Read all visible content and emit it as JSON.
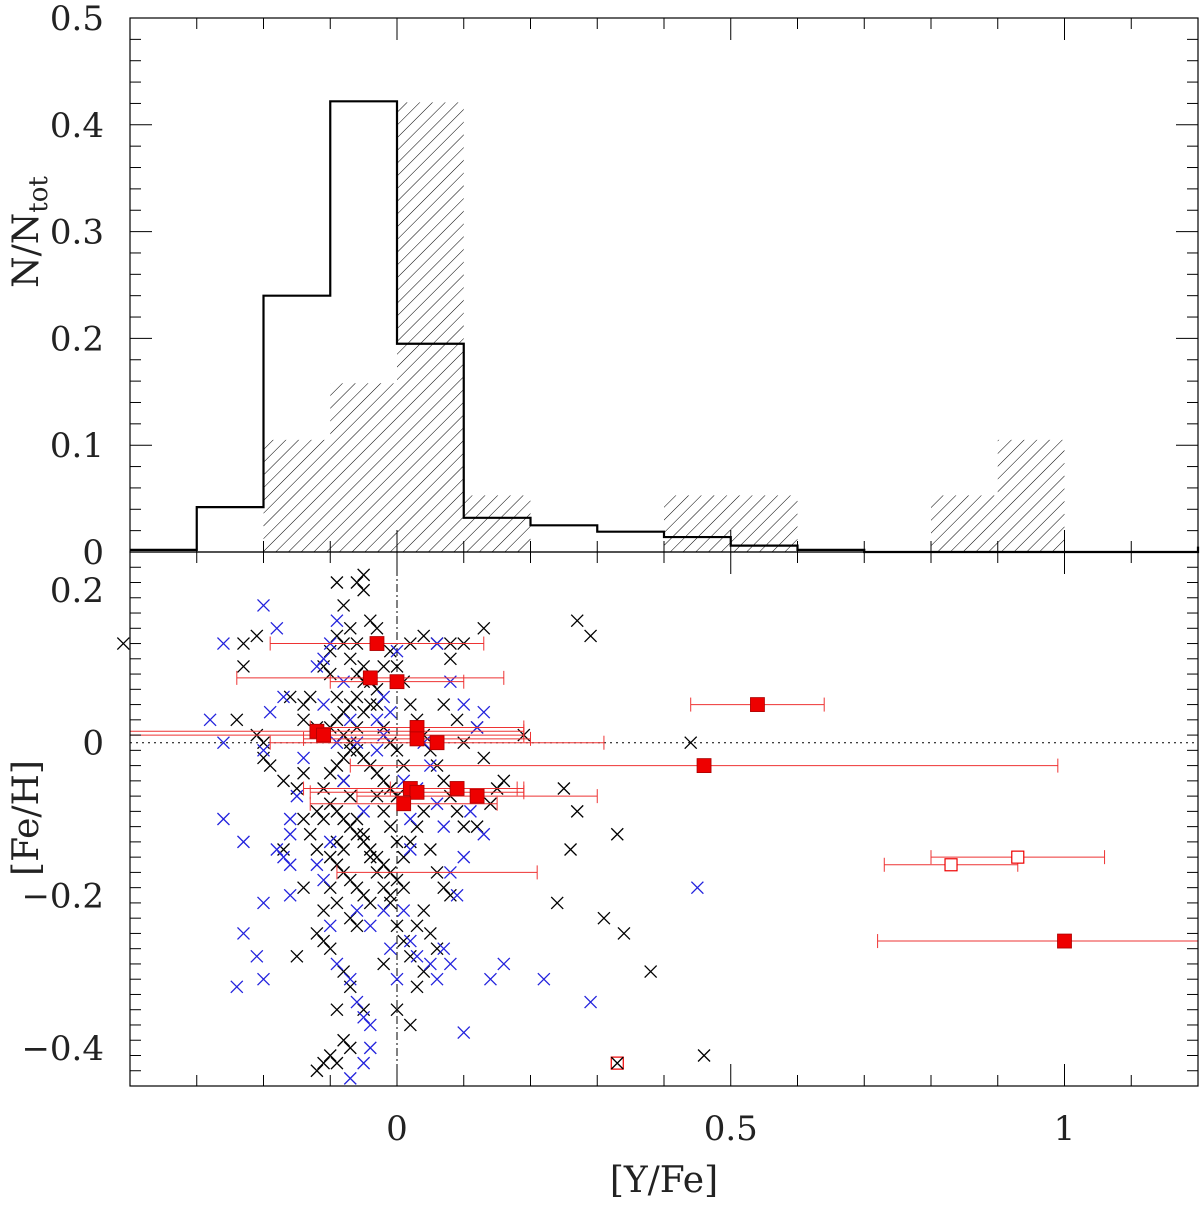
{
  "colors": {
    "field_stars": "#000000",
    "thin_disk": "#2222dd",
    "targets": "#ee0000",
    "error_bars": "#ee3333"
  },
  "chart_data": [
    {
      "type": "histogram",
      "ylabel": "N/N",
      "ylabel_subscript": "tot",
      "xlim": [
        -0.4,
        1.2
      ],
      "ylim": [
        0,
        0.5
      ],
      "yticks": [
        {
          "v": 0,
          "label": "0"
        },
        {
          "v": 0.1,
          "label": "0.1"
        },
        {
          "v": 0.2,
          "label": "0.2"
        },
        {
          "v": 0.3,
          "label": "0.3"
        },
        {
          "v": 0.4,
          "label": "0.4"
        },
        {
          "v": 0.5,
          "label": "0.5"
        }
      ],
      "bin_edges": [
        -0.4,
        -0.3,
        -0.2,
        -0.1,
        0.0,
        0.1,
        0.2,
        0.3,
        0.4,
        0.5,
        0.6,
        0.7,
        0.8,
        0.9,
        1.0,
        1.1,
        1.2
      ],
      "series": [
        {
          "style": "step",
          "values": [
            0.002,
            0.042,
            0.24,
            0.422,
            0.195,
            0.032,
            0.025,
            0.019,
            0.014,
            0.006,
            0.002,
            0.0,
            0.0,
            0.0,
            0.0,
            0.0
          ]
        },
        {
          "style": "hatched",
          "values": [
            0.0,
            0.0,
            0.105,
            0.158,
            0.421,
            0.053,
            0.0,
            0.0,
            0.053,
            0.053,
            0.0,
            0.0,
            0.053,
            0.105,
            0.0,
            0.0
          ]
        }
      ]
    },
    {
      "type": "scatter",
      "xlabel": "[Y/Fe]",
      "ylabel": "[Fe/H]",
      "xlim": [
        -0.4,
        1.2
      ],
      "ylim": [
        -0.45,
        0.25
      ],
      "xticks": [
        {
          "v": 0,
          "label": "0"
        },
        {
          "v": 0.5,
          "label": "0.5"
        },
        {
          "v": 1,
          "label": "1"
        }
      ],
      "yticks": [
        {
          "v": 0.2,
          "label": "0.2"
        },
        {
          "v": 0,
          "label": "0"
        },
        {
          "v": -0.2,
          "label": "−0.2"
        },
        {
          "v": -0.4,
          "label": "−0.4"
        }
      ],
      "reference_lines": {
        "x": 0,
        "y": 0
      },
      "field_black": [
        [
          -0.41,
          0.13
        ],
        [
          -0.23,
          0.13
        ],
        [
          -0.23,
          0.1
        ],
        [
          -0.21,
          0.01
        ],
        [
          -0.2,
          0.0
        ],
        [
          -0.2,
          -0.02
        ],
        [
          -0.19,
          -0.03
        ],
        [
          -0.15,
          -0.06
        ],
        [
          -0.14,
          -0.04
        ],
        [
          -0.17,
          -0.05
        ],
        [
          -0.21,
          0.14
        ],
        [
          -0.24,
          0.03
        ],
        [
          -0.16,
          0.06
        ],
        [
          -0.14,
          0.05
        ],
        [
          -0.14,
          0.03
        ],
        [
          -0.12,
          0.02
        ],
        [
          -0.11,
          0.01
        ],
        [
          -0.11,
          0.1
        ],
        [
          -0.1,
          0.12
        ],
        [
          -0.09,
          0.14
        ],
        [
          -0.08,
          0.13
        ],
        [
          -0.07,
          0.11
        ],
        [
          -0.06,
          0.09
        ],
        [
          -0.05,
          0.08
        ],
        [
          -0.06,
          0.06
        ],
        [
          -0.07,
          0.05
        ],
        [
          -0.08,
          0.04
        ],
        [
          -0.09,
          0.03
        ],
        [
          -0.1,
          0.02
        ],
        [
          -0.08,
          0.01
        ],
        [
          -0.07,
          0.0
        ],
        [
          -0.06,
          -0.01
        ],
        [
          -0.05,
          -0.02
        ],
        [
          -0.04,
          -0.03
        ],
        [
          -0.03,
          -0.04
        ],
        [
          -0.02,
          -0.05
        ],
        [
          -0.01,
          -0.06
        ],
        [
          0.0,
          -0.07
        ],
        [
          -0.1,
          -0.08
        ],
        [
          -0.09,
          -0.09
        ],
        [
          -0.08,
          -0.1
        ],
        [
          -0.07,
          -0.11
        ],
        [
          -0.06,
          -0.12
        ],
        [
          -0.05,
          -0.13
        ],
        [
          -0.04,
          -0.14
        ],
        [
          -0.03,
          -0.15
        ],
        [
          -0.02,
          -0.16
        ],
        [
          -0.01,
          -0.17
        ],
        [
          0.0,
          -0.18
        ],
        [
          0.01,
          -0.19
        ],
        [
          -0.1,
          -0.15
        ],
        [
          -0.09,
          -0.16
        ],
        [
          -0.08,
          -0.17
        ],
        [
          -0.07,
          -0.18
        ],
        [
          -0.06,
          -0.19
        ],
        [
          -0.05,
          -0.2
        ],
        [
          -0.04,
          -0.21
        ],
        [
          -0.11,
          -0.22
        ],
        [
          -0.12,
          -0.25
        ],
        [
          -0.11,
          -0.26
        ],
        [
          -0.1,
          -0.27
        ],
        [
          -0.08,
          -0.3
        ],
        [
          -0.07,
          -0.32
        ],
        [
          -0.05,
          -0.35
        ],
        [
          -0.09,
          -0.35
        ],
        [
          -0.08,
          -0.39
        ],
        [
          -0.07,
          -0.4
        ],
        [
          -0.09,
          -0.42
        ],
        [
          -0.11,
          -0.42
        ],
        [
          -0.12,
          -0.43
        ],
        [
          -0.1,
          -0.41
        ],
        [
          -0.13,
          0.06
        ],
        [
          -0.11,
          -0.1
        ],
        [
          -0.11,
          -0.06
        ],
        [
          -0.1,
          -0.04
        ],
        [
          -0.09,
          -0.03
        ],
        [
          -0.08,
          -0.02
        ],
        [
          -0.07,
          -0.01
        ],
        [
          -0.06,
          0.02
        ],
        [
          -0.05,
          0.04
        ],
        [
          -0.04,
          0.05
        ],
        [
          -0.03,
          0.07
        ],
        [
          -0.02,
          0.1
        ],
        [
          -0.01,
          0.12
        ],
        [
          0.0,
          0.1
        ],
        [
          0.01,
          0.08
        ],
        [
          0.02,
          0.05
        ],
        [
          0.03,
          0.03
        ],
        [
          0.04,
          0.01
        ],
        [
          0.05,
          -0.01
        ],
        [
          0.06,
          -0.03
        ],
        [
          0.07,
          -0.05
        ],
        [
          0.08,
          -0.07
        ],
        [
          0.09,
          -0.09
        ],
        [
          0.1,
          -0.11
        ],
        [
          0.05,
          -0.14
        ],
        [
          0.06,
          -0.17
        ],
        [
          0.07,
          -0.19
        ],
        [
          0.08,
          -0.2
        ],
        [
          0.04,
          -0.22
        ],
        [
          0.03,
          -0.24
        ],
        [
          0.05,
          -0.25
        ],
        [
          0.06,
          -0.27
        ],
        [
          0.04,
          -0.3
        ],
        [
          0.03,
          -0.32
        ],
        [
          0.02,
          -0.28
        ],
        [
          0.01,
          -0.26
        ],
        [
          0.0,
          -0.24
        ],
        [
          -0.01,
          -0.21
        ],
        [
          -0.02,
          -0.29
        ],
        [
          0.02,
          -0.37
        ],
        [
          0.0,
          -0.35
        ],
        [
          -0.05,
          0.22
        ],
        [
          -0.05,
          0.2
        ],
        [
          -0.06,
          0.21
        ],
        [
          -0.09,
          0.21
        ],
        [
          -0.08,
          0.18
        ],
        [
          -0.04,
          0.16
        ],
        [
          -0.03,
          0.15
        ],
        [
          0.02,
          0.13
        ],
        [
          0.04,
          0.14
        ],
        [
          0.06,
          0.13
        ],
        [
          0.08,
          0.13
        ],
        [
          0.1,
          0.13
        ],
        [
          0.13,
          0.15
        ],
        [
          0.12,
          0.02
        ],
        [
          0.13,
          -0.02
        ],
        [
          0.15,
          -0.06
        ],
        [
          0.16,
          -0.05
        ],
        [
          0.14,
          -0.08
        ],
        [
          0.12,
          -0.11
        ],
        [
          0.07,
          0.05
        ],
        [
          0.08,
          0.11
        ],
        [
          0.09,
          0.03
        ],
        [
          0.1,
          0.0
        ],
        [
          0.27,
          0.16
        ],
        [
          0.29,
          0.14
        ],
        [
          0.19,
          0.01
        ],
        [
          0.25,
          -0.06
        ],
        [
          0.27,
          -0.09
        ],
        [
          0.33,
          -0.12
        ],
        [
          0.26,
          -0.14
        ],
        [
          0.24,
          -0.21
        ],
        [
          0.31,
          -0.23
        ],
        [
          0.34,
          -0.25
        ],
        [
          0.38,
          -0.3
        ],
        [
          0.44,
          0.0
        ],
        [
          0.46,
          -0.41
        ],
        [
          -0.15,
          -0.28
        ],
        [
          -0.14,
          -0.19
        ],
        [
          -0.17,
          -0.14
        ],
        [
          -0.12,
          -0.14
        ],
        [
          -0.13,
          -0.12
        ],
        [
          -0.14,
          -0.1
        ],
        [
          -0.12,
          -0.09
        ],
        [
          -0.03,
          -0.07
        ],
        [
          -0.02,
          -0.09
        ],
        [
          -0.01,
          -0.11
        ],
        [
          0.0,
          -0.13
        ],
        [
          0.01,
          -0.15
        ],
        [
          0.02,
          -0.13
        ],
        [
          0.03,
          -0.11
        ],
        [
          0.04,
          -0.09
        ],
        [
          0.02,
          -0.06
        ],
        [
          0.01,
          -0.03
        ],
        [
          0.0,
          -0.01
        ],
        [
          -0.01,
          0.0
        ],
        [
          -0.02,
          0.02
        ],
        [
          -0.03,
          0.05
        ],
        [
          -0.04,
          0.08
        ],
        [
          -0.05,
          0.1
        ],
        [
          -0.06,
          0.13
        ],
        [
          -0.07,
          0.15
        ],
        [
          -0.1,
          0.09
        ],
        [
          -0.09,
          0.06
        ],
        [
          -0.08,
          -0.05
        ],
        [
          -0.07,
          -0.07
        ],
        [
          -0.06,
          -0.1
        ],
        [
          -0.05,
          -0.12
        ],
        [
          -0.04,
          -0.15
        ],
        [
          -0.03,
          -0.17
        ],
        [
          -0.02,
          -0.19
        ],
        [
          -0.01,
          -0.2
        ],
        [
          -0.09,
          -0.13
        ],
        [
          -0.08,
          -0.14
        ],
        [
          -0.1,
          -0.19
        ],
        [
          -0.09,
          -0.21
        ],
        [
          -0.07,
          -0.23
        ],
        [
          -0.06,
          -0.24
        ]
      ],
      "field_blue": [
        [
          -0.26,
          0.0
        ],
        [
          -0.26,
          0.13
        ],
        [
          -0.2,
          0.18
        ],
        [
          -0.18,
          0.15
        ],
        [
          -0.28,
          0.03
        ],
        [
          -0.17,
          0.06
        ],
        [
          -0.19,
          0.04
        ],
        [
          -0.2,
          -0.01
        ],
        [
          -0.26,
          -0.1
        ],
        [
          -0.23,
          -0.13
        ],
        [
          -0.18,
          -0.14
        ],
        [
          -0.16,
          -0.12
        ],
        [
          -0.17,
          -0.15
        ],
        [
          -0.16,
          -0.16
        ],
        [
          -0.2,
          -0.21
        ],
        [
          -0.23,
          -0.25
        ],
        [
          -0.21,
          -0.28
        ],
        [
          -0.2,
          -0.31
        ],
        [
          -0.24,
          -0.32
        ],
        [
          -0.16,
          -0.2
        ],
        [
          -0.16,
          -0.1
        ],
        [
          -0.15,
          -0.07
        ],
        [
          -0.14,
          -0.02
        ],
        [
          -0.11,
          0.05
        ],
        [
          -0.11,
          0.11
        ],
        [
          -0.1,
          0.13
        ],
        [
          -0.09,
          0.0
        ],
        [
          -0.12,
          -0.16
        ],
        [
          -0.11,
          -0.18
        ],
        [
          -0.1,
          -0.24
        ],
        [
          -0.09,
          -0.29
        ],
        [
          -0.07,
          -0.31
        ],
        [
          -0.06,
          -0.34
        ],
        [
          -0.05,
          -0.36
        ],
        [
          -0.04,
          -0.37
        ],
        [
          -0.04,
          -0.4
        ],
        [
          -0.05,
          -0.42
        ],
        [
          -0.07,
          -0.44
        ],
        [
          -0.09,
          0.16
        ],
        [
          -0.06,
          0.0
        ],
        [
          -0.03,
          0.03
        ],
        [
          -0.02,
          0.06
        ],
        [
          0.0,
          0.12
        ],
        [
          0.0,
          0.08
        ],
        [
          0.01,
          -0.05
        ],
        [
          0.02,
          -0.1
        ],
        [
          0.02,
          -0.14
        ],
        [
          0.01,
          -0.22
        ],
        [
          0.02,
          -0.26
        ],
        [
          0.03,
          -0.28
        ],
        [
          0.05,
          -0.29
        ],
        [
          0.07,
          -0.27
        ],
        [
          0.06,
          -0.31
        ],
        [
          0.08,
          -0.29
        ],
        [
          0.06,
          0.13
        ],
        [
          0.08,
          0.08
        ],
        [
          0.1,
          0.05
        ],
        [
          0.12,
          0.02
        ],
        [
          0.13,
          0.04
        ],
        [
          0.09,
          -0.06
        ],
        [
          0.11,
          -0.09
        ],
        [
          0.13,
          -0.12
        ],
        [
          0.1,
          -0.15
        ],
        [
          0.08,
          -0.17
        ],
        [
          0.09,
          -0.2
        ],
        [
          0.1,
          -0.38
        ],
        [
          0.14,
          -0.31
        ],
        [
          0.16,
          -0.29
        ],
        [
          0.22,
          -0.31
        ],
        [
          0.29,
          -0.34
        ],
        [
          0.45,
          -0.19
        ],
        [
          -0.1,
          -0.13
        ],
        [
          -0.08,
          -0.05
        ],
        [
          -0.05,
          -0.09
        ],
        [
          -0.03,
          -0.01
        ],
        [
          -0.02,
          0.01
        ],
        [
          -0.01,
          0.04
        ],
        [
          0.04,
          0.0
        ],
        [
          0.05,
          -0.03
        ],
        [
          0.03,
          -0.06
        ],
        [
          0.06,
          -0.08
        ],
        [
          0.07,
          -0.11
        ],
        [
          -0.04,
          -0.24
        ],
        [
          -0.02,
          -0.22
        ],
        [
          -0.01,
          -0.27
        ],
        [
          0.0,
          -0.31
        ],
        [
          -0.06,
          -0.22
        ],
        [
          -0.08,
          0.08
        ],
        [
          -0.07,
          0.03
        ],
        [
          -0.12,
          0.1
        ]
      ],
      "targets": [
        {
          "x": -0.03,
          "y": 0.13,
          "xerr": 0.16
        },
        {
          "x": -0.04,
          "y": 0.085,
          "xerr": 0.2
        },
        {
          "x": 0.0,
          "y": 0.08,
          "xerr": 0.1
        },
        {
          "x": 0.54,
          "y": 0.05,
          "xerr": 0.1
        },
        {
          "x": -0.12,
          "y": 0.015,
          "xerr": 0.31
        },
        {
          "x": -0.11,
          "y": 0.01,
          "xerr": 0.3
        },
        {
          "x": 0.03,
          "y": 0.02,
          "xerr": 0.16
        },
        {
          "x": 0.03,
          "y": 0.005,
          "xerr": 0.17
        },
        {
          "x": 0.06,
          "y": 0.0,
          "xerr": 0.25
        },
        {
          "x": 0.46,
          "y": -0.03,
          "xerr": 0.53
        },
        {
          "x": 0.02,
          "y": -0.06,
          "xerr": 0.16
        },
        {
          "x": 0.03,
          "y": -0.065,
          "xerr": 0.16
        },
        {
          "x": 0.09,
          "y": -0.06,
          "xerr": 0.1
        },
        {
          "x": 0.12,
          "y": -0.07,
          "xerr": 0.18
        },
        {
          "x": 0.01,
          "y": -0.08,
          "xerr": 0.14
        },
        {
          "x": 1.0,
          "y": -0.26,
          "xerr": 0.28
        }
      ],
      "targets_open": [
        {
          "x": 0.83,
          "y": -0.16,
          "xerr": 0.1
        },
        {
          "x": 0.93,
          "y": -0.15,
          "xerr": 0.13
        }
      ],
      "error_bar_only": [
        {
          "x": 0.06,
          "y": -0.17,
          "xerr": 0.15
        }
      ],
      "crossed_box": {
        "x": 0.33,
        "y": -0.42
      }
    }
  ]
}
